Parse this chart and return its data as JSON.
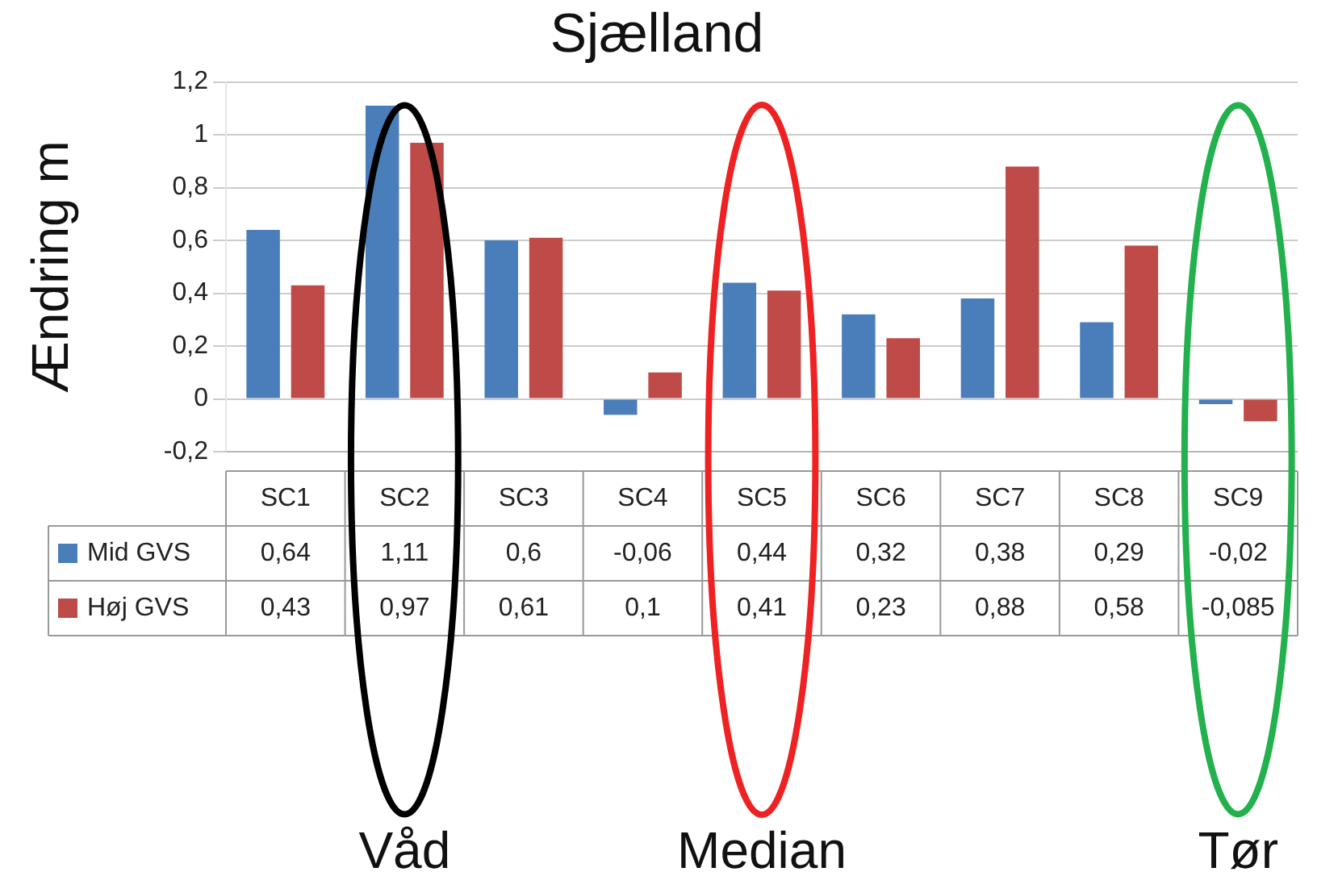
{
  "chart_data": {
    "type": "bar",
    "title": "Sjælland",
    "ylabel": "Ændring m",
    "categories": [
      "SC1",
      "SC2",
      "SC3",
      "SC4",
      "SC5",
      "SC6",
      "SC7",
      "SC8",
      "SC9"
    ],
    "series": [
      {
        "name": "Mid GVS",
        "color": "#4a7ebb",
        "values": [
          0.64,
          1.11,
          0.6,
          -0.06,
          0.44,
          0.32,
          0.38,
          0.29,
          -0.02
        ],
        "value_labels": [
          "0,64",
          "1,11",
          "0,6",
          "-0,06",
          "0,44",
          "0,32",
          "0,38",
          "0,29",
          "-0,02"
        ]
      },
      {
        "name": "Høj GVS",
        "color": "#be4b48",
        "values": [
          0.43,
          0.97,
          0.61,
          0.1,
          0.41,
          0.23,
          0.88,
          0.58,
          -0.085
        ],
        "value_labels": [
          "0,43",
          "0,97",
          "0,61",
          "0,1",
          "0,41",
          "0,23",
          "0,88",
          "0,58",
          "-0,085"
        ]
      }
    ],
    "ylim": [
      -0.2,
      1.2
    ],
    "yticks": [
      {
        "value": -0.2,
        "label": "-0,2"
      },
      0,
      {
        "value": 0.2,
        "label": "0,2"
      },
      {
        "value": 0.4,
        "label": "0,4"
      },
      {
        "value": 0.6,
        "label": "0,6"
      },
      {
        "value": 0.8,
        "label": "0,8"
      },
      1,
      {
        "value": 1.2,
        "label": "1,2"
      }
    ],
    "grid": "y",
    "legend": "left",
    "annotations": [
      "Våd",
      "Median",
      "Tør"
    ]
  }
}
